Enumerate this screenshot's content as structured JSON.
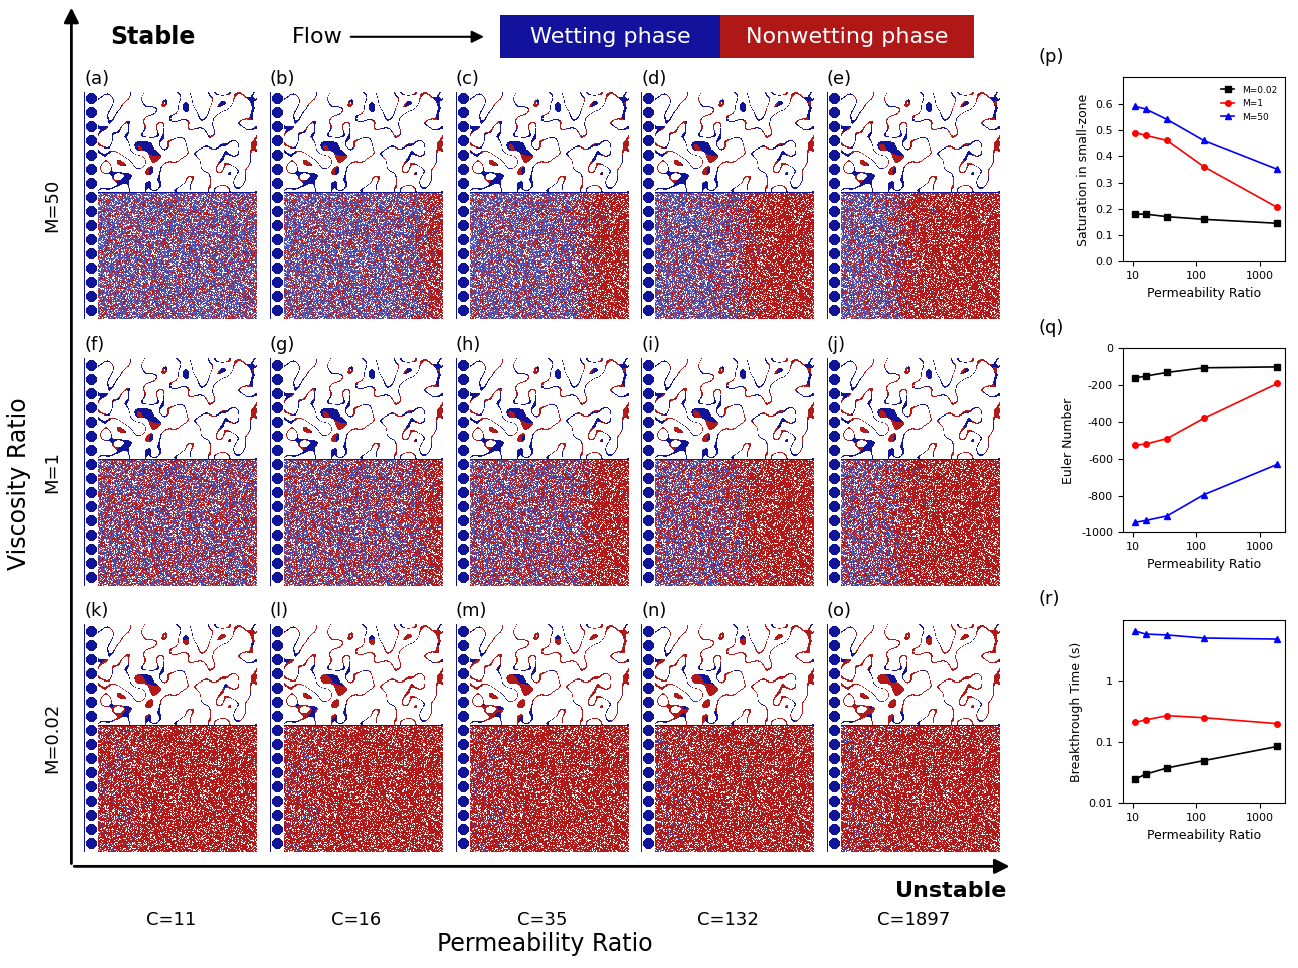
{
  "header": {
    "stable": "Stable",
    "flow": "Flow",
    "wetting": "Wetting phase",
    "nonwetting": "Nonwetting phase",
    "unstable": "Unstable"
  },
  "axis_titles": {
    "y": "Viscosity Ratio",
    "x": "Permeability Ratio"
  },
  "rows": [
    "M=50",
    "M=1",
    "M=0.02"
  ],
  "columns": [
    "C=11",
    "C=16",
    "C=35",
    "C=132",
    "C=1897"
  ],
  "panel_labels": [
    [
      "(a)",
      "(b)",
      "(c)",
      "(d)",
      "(e)"
    ],
    [
      "(f)",
      "(g)",
      "(h)",
      "(i)",
      "(j)"
    ],
    [
      "(k)",
      "(l)",
      "(m)",
      "(n)",
      "(o)"
    ]
  ],
  "chart_data": [
    {
      "panel_label": "(p)",
      "type": "line",
      "xlabel": "Permeability Ratio",
      "ylabel": "Saturation in small-zone",
      "log": "x",
      "x": [
        11,
        16,
        35,
        132,
        1897
      ],
      "xlim": [
        7,
        2500
      ],
      "xticks": [
        10,
        100,
        1000
      ],
      "ylim": [
        0.0,
        0.7
      ],
      "yticks": [
        0.0,
        0.1,
        0.2,
        0.3,
        0.4,
        0.5,
        0.6
      ],
      "legend": "upper right",
      "series": [
        {
          "name": "M=0.02",
          "color": "#000000",
          "marker": "square",
          "values": [
            0.18,
            0.18,
            0.17,
            0.16,
            0.145
          ]
        },
        {
          "name": "M=1",
          "color": "#ff0000",
          "marker": "circle",
          "values": [
            0.49,
            0.48,
            0.46,
            0.36,
            0.205
          ]
        },
        {
          "name": "M=50",
          "color": "#0000ff",
          "marker": "triangle",
          "values": [
            0.59,
            0.58,
            0.54,
            0.46,
            0.35
          ]
        }
      ]
    },
    {
      "panel_label": "(q)",
      "type": "line",
      "xlabel": "Permeability Ratio",
      "ylabel": "Euler Number",
      "log": "x",
      "x": [
        11,
        16,
        35,
        132,
        1897
      ],
      "xlim": [
        7,
        2500
      ],
      "xticks": [
        10,
        100,
        1000
      ],
      "ylim": [
        -1000,
        0
      ],
      "yticks": [
        -1000,
        -800,
        -600,
        -400,
        -200,
        0
      ],
      "series": [
        {
          "name": "M=0.02",
          "color": "#000000",
          "marker": "square",
          "values": [
            -160,
            -150,
            -130,
            -105,
            -100
          ]
        },
        {
          "name": "M=1",
          "color": "#ff0000",
          "marker": "circle",
          "values": [
            -525,
            -520,
            -490,
            -380,
            -190
          ]
        },
        {
          "name": "M=50",
          "color": "#0000ff",
          "marker": "triangle",
          "values": [
            -945,
            -935,
            -910,
            -795,
            -630
          ]
        }
      ]
    },
    {
      "panel_label": "(r)",
      "type": "line",
      "xlabel": "Permeability Ratio",
      "ylabel": "Breakthrough Time (s)",
      "log": true,
      "x": [
        11,
        16,
        35,
        132,
        1897
      ],
      "xlim": [
        7,
        2500
      ],
      "xticks": [
        10,
        100,
        1000
      ],
      "ylim": [
        0.01,
        10
      ],
      "yticks": [
        0.01,
        0.1,
        1
      ],
      "series": [
        {
          "name": "M=0.02",
          "color": "#000000",
          "marker": "square",
          "values": [
            0.025,
            0.03,
            0.038,
            0.05,
            0.085
          ]
        },
        {
          "name": "M=1",
          "color": "#ff0000",
          "marker": "circle",
          "values": [
            0.21,
            0.23,
            0.27,
            0.25,
            0.2
          ]
        },
        {
          "name": "M=50",
          "color": "#0000ff",
          "marker": "triangle",
          "values": [
            6.5,
            5.8,
            5.6,
            5.0,
            4.8
          ]
        }
      ]
    }
  ]
}
